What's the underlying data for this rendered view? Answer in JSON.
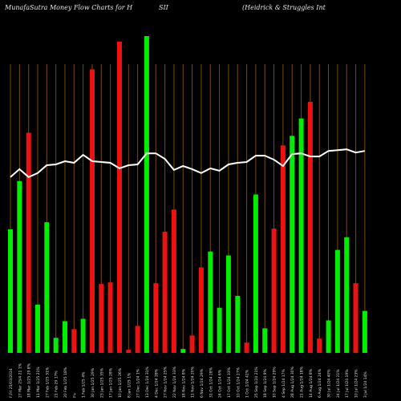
{
  "header": {
    "left": "MunafaSutra  Money Flow  Charts for H",
    "middle": "SII",
    "right": "(Heidrick & Struggles Int"
  },
  "colors": {
    "background": "#000000",
    "up": "#00ee00",
    "down": "#ee1111",
    "grid": "#7a4a0a",
    "line": "#ffffff",
    "text": "#e0e0e0"
  },
  "chart_data": {
    "type": "bar",
    "ylim": [
      0,
      400
    ],
    "series": [
      {
        "name": "",
        "kind": "bar",
        "values": [
          156,
          217,
          278,
          61,
          165,
          19,
          40,
          30,
          43,
          358,
          87,
          89,
          393,
          4,
          34,
          400,
          88,
          153,
          181,
          5,
          22,
          108,
          128,
          57,
          123,
          72,
          13,
          200,
          31,
          157,
          262,
          274,
          296,
          317,
          18,
          41,
          130,
          146,
          88,
          53
        ],
        "directions": [
          "up",
          "up",
          "down",
          "up",
          "up",
          "up",
          "up",
          "down",
          "up",
          "down",
          "down",
          "down",
          "down",
          "down",
          "down",
          "up",
          "down",
          "down",
          "down",
          "up",
          "down",
          "down",
          "up",
          "up",
          "up",
          "up",
          "down",
          "up",
          "up",
          "down",
          "down",
          "up",
          "up",
          "down",
          "down",
          "up",
          "up",
          "up",
          "down",
          "up"
        ]
      },
      {
        "name": "",
        "kind": "line",
        "values": [
          222,
          232,
          222,
          227,
          237,
          238,
          242,
          240,
          250,
          242,
          241,
          240,
          233,
          237,
          238,
          252,
          252,
          245,
          231,
          236,
          232,
          227,
          233,
          230,
          238,
          240,
          241,
          249,
          249,
          244,
          236,
          251,
          252,
          248,
          248,
          255,
          256,
          257,
          253,
          255
        ]
      }
    ],
    "categories": [
      "F,Fri 25/03/2024",
      "27 Mar 25/4 21 1%",
      "18 Mar 1/25 29 8%",
      "11 Mar 1/25 21%",
      "27 Feb 1/25 31%",
      "21 Feb 29 17%",
      "20 Feb 1/25 18%",
      "P+",
      "1 Feb 1/25 4%",
      "30 Jan 1/25 29%",
      "23 Jan 1/25 35%",
      "17 Jan 1/25 28%",
      "10 Jan 1/25 26%",
      "8 Jan 1/25 1%",
      "27 Dec 1/24 1%",
      "13 Dec 1/24 31%",
      "4 Dec 1/24 28%",
      "27 Nov 1/24 25%",
      "22 Nov 1/24 33%",
      "18 Nov 1/24 8%",
      "11 Nov 1/24 20%",
      "6 Nov 1/24 29%",
      "31 Oct 1/24 28%",
      "24 Oct 1/24 6%",
      "17 Oct 1/24 33%",
      "10 Oct 1/24 27%",
      "1 Oct 1/24 42%",
      "25 Sep 1/24 21%",
      "18 Sep 1/24 9%",
      "10 Sep 1/24 29%",
      "4 Sep 1/24 17%",
      "28 Aug 1/24 30%",
      "21 Aug 1/24 18%",
      "14 Aug 1/24 8%",
      "6 Aug 1/24 24%",
      "30 Jul 1/24 40%",
      "24 Jul 1/24 21%",
      "17 Jul 1/24 19%",
      "10 Jul 1/24 23%",
      "3 Jul 1/24 14%"
    ],
    "title": "MunafaSutra Money Flow Charts for HSII (Heidrick & Struggles Int",
    "grid": true
  }
}
